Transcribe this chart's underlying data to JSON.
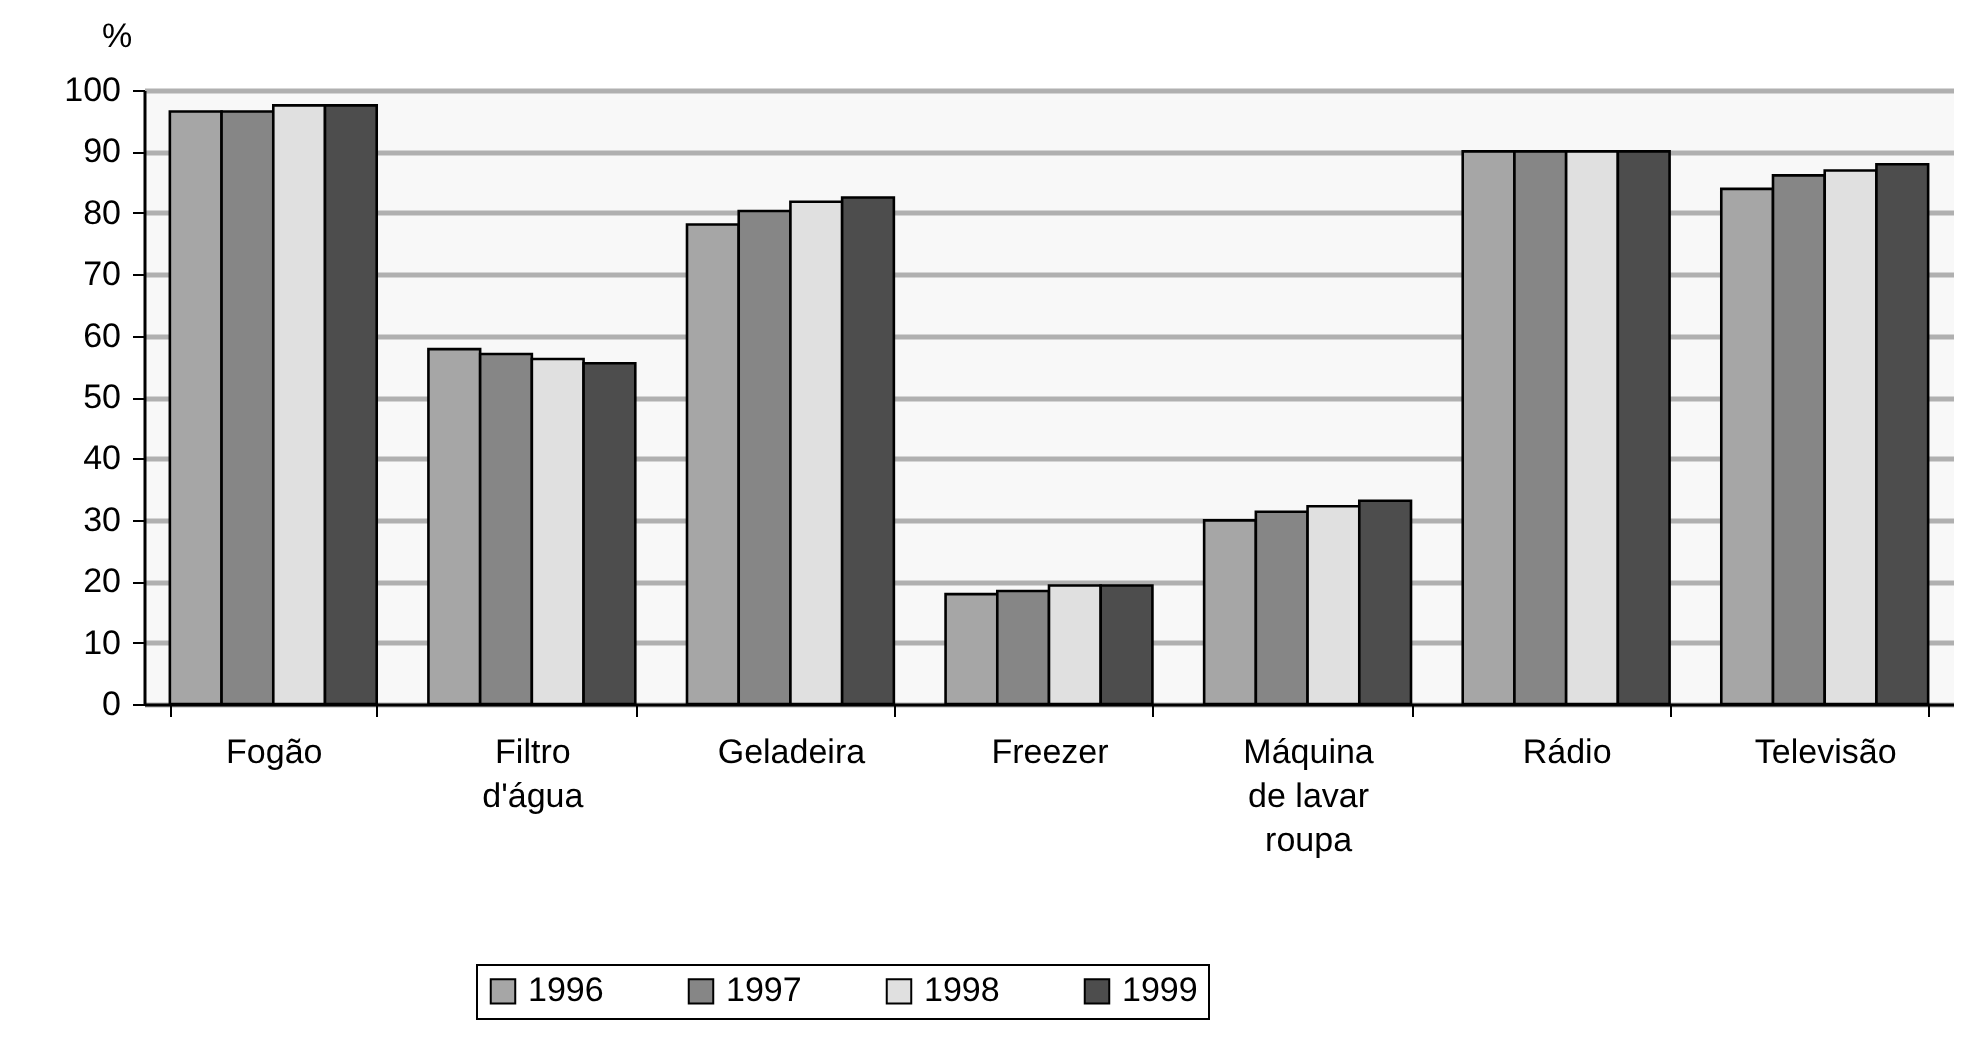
{
  "chart_data": {
    "type": "bar",
    "ylabel": "%",
    "categories": [
      "Fogão",
      "Filtro d'água",
      "Geladeira",
      "Freezer",
      "Máquina de lavar roupa",
      "Rádio",
      "Televisão"
    ],
    "series": [
      {
        "name": "1996",
        "color": "#a6a6a6",
        "values": [
          96.5,
          57.8,
          78.1,
          17.9,
          29.9,
          90.0,
          83.9
        ]
      },
      {
        "name": "1997",
        "color": "#868686",
        "values": [
          96.5,
          57.0,
          80.3,
          18.4,
          31.3,
          90.0,
          86.1
        ]
      },
      {
        "name": "1998",
        "color": "#e0e0e0",
        "values": [
          97.5,
          56.2,
          81.8,
          19.3,
          32.2,
          90.0,
          86.9
        ]
      },
      {
        "name": "1999",
        "color": "#4d4d4d",
        "values": [
          97.5,
          55.5,
          82.5,
          19.3,
          33.1,
          90.0,
          87.9
        ]
      }
    ],
    "ylim": [
      0,
      100
    ],
    "yticks": [
      0,
      10,
      20,
      30,
      40,
      50,
      60,
      70,
      80,
      90,
      100
    ],
    "grid": "y",
    "legend": "bottom"
  }
}
